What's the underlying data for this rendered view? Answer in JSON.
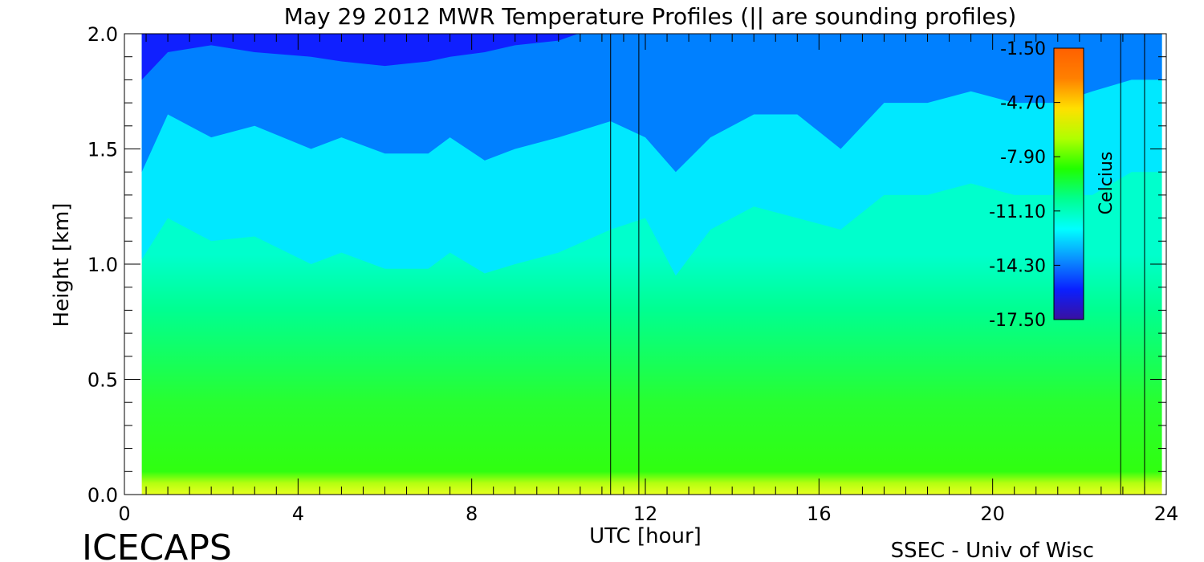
{
  "chart_data": {
    "type": "heatmap",
    "title": "May 29 2012 MWR Temperature Profiles (|| are sounding profiles)",
    "xlabel": "UTC [hour]",
    "ylabel": "Height [km]",
    "xlim": [
      0,
      24
    ],
    "ylim": [
      0,
      2
    ],
    "x_ticks": [
      "0",
      "4",
      "8",
      "12",
      "16",
      "20",
      "24"
    ],
    "y_ticks": [
      "0.0",
      "0.5",
      "1.0",
      "1.5",
      "2.0"
    ],
    "data_start_hour": 0.4,
    "data_end_hour": 23.9,
    "profile_times": [
      0.4,
      1.0,
      2.0,
      3.0,
      4.3,
      5.0,
      6.0,
      7.0,
      7.5,
      8.3,
      9.0,
      10.0,
      11.2,
      12.0,
      12.7,
      13.5,
      14.5,
      15.5,
      16.5,
      17.5,
      18.5,
      19.5,
      20.5,
      21.5,
      22.3,
      23.2,
      23.9
    ],
    "levels": {
      "bluest": [
        1.8,
        1.92,
        1.95,
        1.92,
        1.9,
        1.88,
        1.86,
        1.88,
        1.9,
        1.92,
        1.95,
        1.97,
        2.05,
        2.1,
        2.0,
        2.08,
        2.1,
        2.1,
        2.08,
        2.1,
        2.1,
        2.1,
        2.1,
        2.1,
        2.1,
        2.1,
        2.1
      ],
      "blue": [
        1.4,
        1.65,
        1.55,
        1.6,
        1.5,
        1.55,
        1.48,
        1.48,
        1.55,
        1.45,
        1.5,
        1.55,
        1.62,
        1.55,
        1.4,
        1.55,
        1.65,
        1.65,
        1.5,
        1.7,
        1.7,
        1.75,
        1.7,
        1.7,
        1.75,
        1.8,
        1.8
      ],
      "cyan": [
        1.02,
        1.2,
        1.1,
        1.12,
        1.0,
        1.05,
        0.98,
        0.98,
        1.05,
        0.96,
        1.0,
        1.05,
        1.15,
        1.2,
        0.95,
        1.15,
        1.25,
        1.2,
        1.15,
        1.3,
        1.3,
        1.35,
        1.3,
        1.3,
        1.3,
        1.4,
        1.4
      ]
    },
    "sounding_profiles_utc": [
      11.2,
      11.85,
      22.95,
      23.5
    ],
    "colorbar": {
      "label": "Celcius",
      "min": -17.5,
      "max": -1.5,
      "ticks": [
        "-1.50",
        "-4.70",
        "-7.90",
        "-11.10",
        "-14.30",
        "-17.50"
      ],
      "colors": [
        "#3a10a0",
        "#0a20ff",
        "#0a90ff",
        "#00ffff",
        "#00ff90",
        "#20ff00",
        "#b0ff00",
        "#ffe000",
        "#ff8000",
        "#ff6000"
      ]
    }
  },
  "footer": {
    "left": "ICECAPS",
    "right": "SSEC - Univ of Wisc"
  }
}
